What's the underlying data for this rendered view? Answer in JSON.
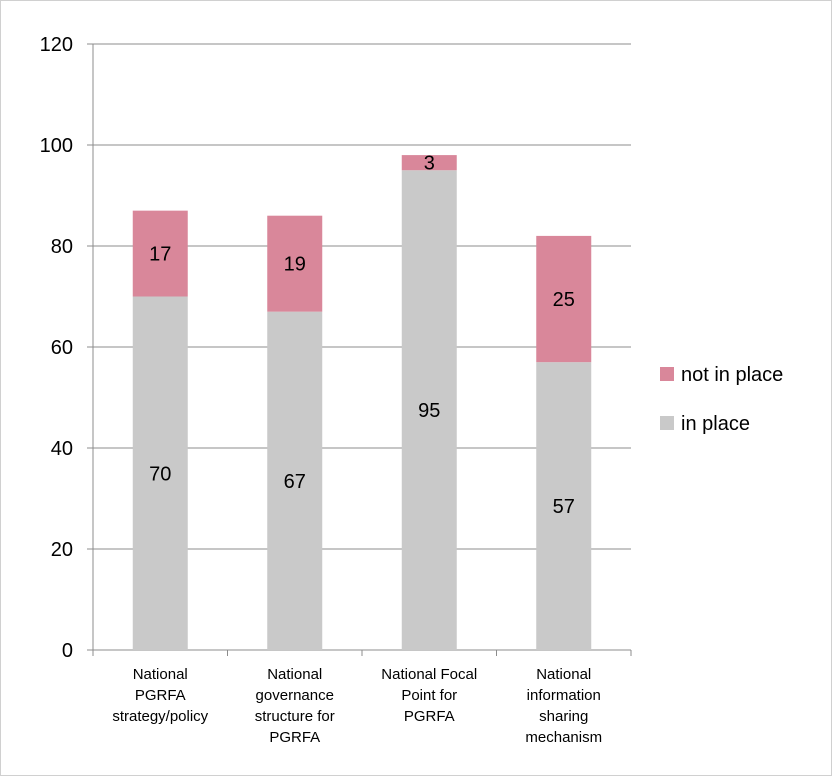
{
  "chart_data": {
    "type": "bar",
    "stacked": true,
    "categories": [
      [
        "National",
        "PGRFA",
        "strategy/policy"
      ],
      [
        "National",
        "governance",
        "structure for",
        "PGRFA"
      ],
      [
        "National Focal",
        "Point for",
        "PGRFA"
      ],
      [
        "National",
        "information",
        "sharing",
        "mechanism"
      ]
    ],
    "series": [
      {
        "name": "in place",
        "color": "#c9c9c9",
        "values": [
          70,
          67,
          95,
          57
        ]
      },
      {
        "name": "not in place",
        "color": "#d9879a",
        "values": [
          17,
          19,
          3,
          25
        ]
      }
    ],
    "ylim": [
      0,
      120
    ],
    "yticks": [
      "0",
      "20",
      "40",
      "60",
      "80",
      "100",
      "120"
    ],
    "grid": true,
    "legend_position": "right",
    "legend_order": [
      "not in place",
      "in place"
    ]
  }
}
